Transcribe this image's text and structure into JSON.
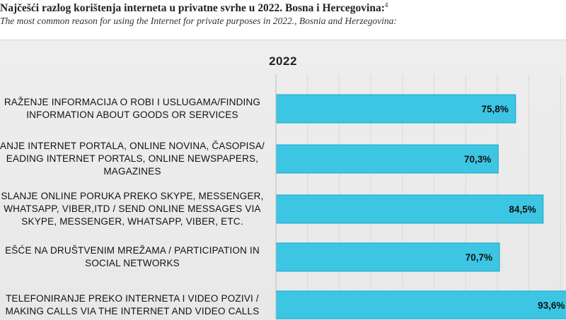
{
  "document": {
    "title": "Najčešći razlog korištenja interneta u privatne svrhe u 2022. Bosna i Hercegovina:",
    "footnote_mark": "4",
    "subtitle": "The most common reason for using the Internet for private purposes in 2022., Bosnia and Herzegovina:"
  },
  "chart_data": {
    "type": "bar",
    "orientation": "horizontal",
    "title": "2022",
    "categories": [
      [
        "RAŽENJE INFORMACIJA O ROBI I USLUGAMA/FINDING",
        "INFORMATION ABOUT GOODS OR SERVICES"
      ],
      [
        "ANJE INTERNET PORTALA, ONLINE NOVINA, ČASOPISA/",
        "EADING INTERNET PORTALS, ONLINE NEWSPAPERS,",
        "MAGAZINES"
      ],
      [
        "SLANJE ONLINE PORUKA PREKO SKYPE, MESSENGER,",
        "WHATSAPP, VIBER,ITD / SEND ONLINE MESSAGES VIA",
        "SKYPE, MESSENGER, WHATSAPP, VIBER, ETC."
      ],
      [
        "EŠĆE NA DRUŠTVENIM MREŽAMA / PARTICIPATION IN",
        "SOCIAL NETWORKS"
      ],
      [
        "TELEFONIRANJE PREKO INTERNETA I VIDEO POZIVI /",
        "MAKING CALLS VIA THE INTERNET AND VIDEO CALLS"
      ]
    ],
    "values": [
      75.8,
      70.3,
      84.5,
      70.7,
      93.6
    ],
    "value_labels": [
      "75,8%",
      "70,3%",
      "84,5%",
      "70,7%",
      "93,6%"
    ],
    "xlim": [
      0,
      100
    ],
    "grid": true,
    "bar_color": "#3cc6e4",
    "bar_edge_color": "#1aa6c8"
  }
}
